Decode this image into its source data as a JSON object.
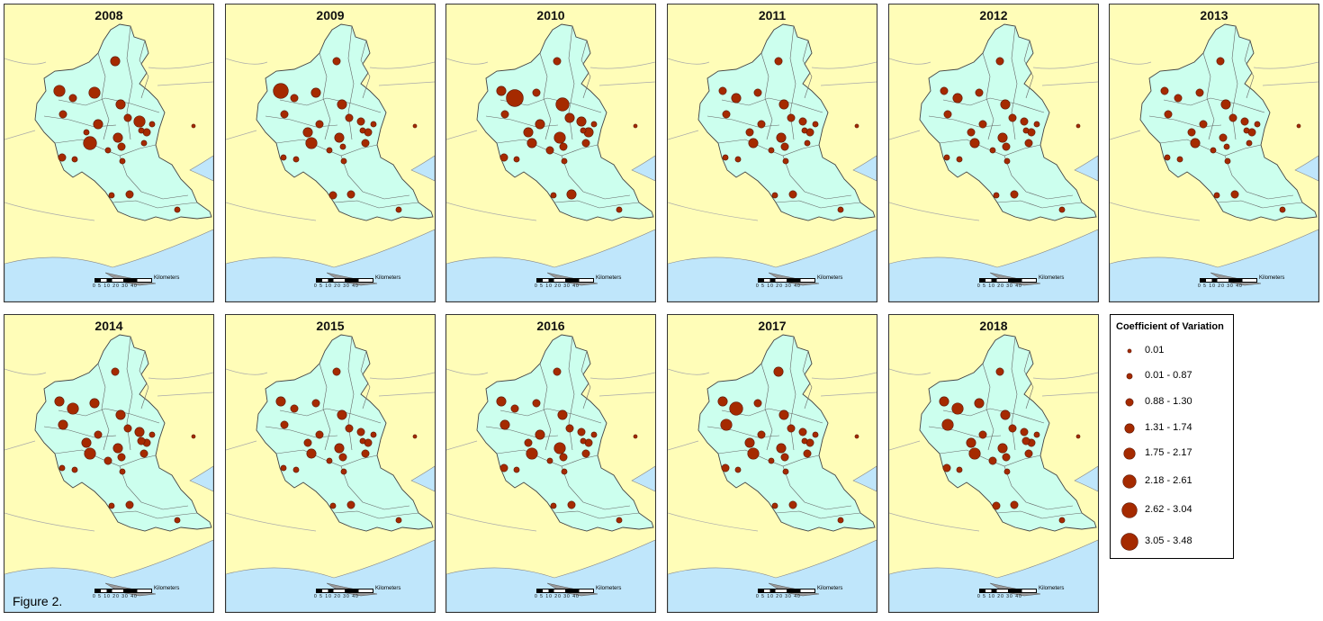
{
  "maps": [
    {
      "year": "2008",
      "sizes": [
        5,
        3,
        4,
        5,
        4,
        3,
        4,
        4,
        3,
        5,
        3,
        2,
        2,
        2,
        2,
        6,
        3,
        2,
        3,
        2,
        3,
        2,
        2,
        1,
        2
      ]
    },
    {
      "year": "2009",
      "sizes": [
        7,
        3,
        3,
        4,
        4,
        3,
        3,
        4,
        3,
        3,
        3,
        2,
        3,
        4,
        2,
        5,
        2,
        2,
        2,
        2,
        3,
        3,
        2,
        1,
        2
      ]
    },
    {
      "year": "2010",
      "sizes": [
        4,
        8,
        3,
        3,
        6,
        3,
        4,
        5,
        4,
        4,
        4,
        2,
        3,
        4,
        3,
        4,
        3,
        2,
        3,
        2,
        4,
        2,
        2,
        1,
        2
      ]
    },
    {
      "year": "2011",
      "sizes": [
        3,
        4,
        3,
        3,
        4,
        3,
        3,
        4,
        3,
        3,
        3,
        2,
        2,
        3,
        2,
        4,
        2,
        2,
        3,
        2,
        3,
        2,
        2,
        1,
        2
      ]
    },
    {
      "year": "2012",
      "sizes": [
        3,
        4,
        3,
        3,
        4,
        3,
        3,
        4,
        3,
        3,
        3,
        2,
        3,
        3,
        2,
        4,
        2,
        2,
        3,
        2,
        3,
        2,
        2,
        1,
        2
      ]
    },
    {
      "year": "2013",
      "sizes": [
        3,
        3,
        3,
        3,
        4,
        3,
        3,
        3,
        3,
        3,
        3,
        2,
        2,
        3,
        2,
        4,
        2,
        2,
        2,
        2,
        3,
        2,
        2,
        1,
        2
      ]
    },
    {
      "year": "2014",
      "sizes": [
        4,
        5,
        3,
        4,
        4,
        4,
        3,
        4,
        3,
        4,
        3,
        2,
        3,
        4,
        3,
        5,
        2,
        2,
        3,
        2,
        3,
        2,
        2,
        1,
        3
      ]
    },
    {
      "year": "2015",
      "sizes": [
        4,
        3,
        3,
        3,
        4,
        3,
        3,
        4,
        3,
        3,
        3,
        2,
        3,
        3,
        2,
        4,
        2,
        2,
        3,
        2,
        3,
        2,
        2,
        1,
        2
      ]
    },
    {
      "year": "2016",
      "sizes": [
        4,
        3,
        3,
        3,
        4,
        4,
        4,
        5,
        3,
        3,
        3,
        2,
        3,
        3,
        2,
        5,
        3,
        2,
        3,
        2,
        3,
        2,
        2,
        1,
        2
      ]
    },
    {
      "year": "2017",
      "sizes": [
        4,
        6,
        4,
        3,
        4,
        5,
        3,
        4,
        3,
        3,
        3,
        2,
        3,
        4,
        2,
        5,
        3,
        2,
        3,
        2,
        3,
        2,
        2,
        1,
        2
      ]
    },
    {
      "year": "2018",
      "sizes": [
        4,
        5,
        3,
        4,
        4,
        5,
        3,
        4,
        3,
        3,
        3,
        2,
        3,
        4,
        3,
        5,
        3,
        2,
        3,
        2,
        3,
        3,
        2,
        1,
        3
      ]
    }
  ],
  "scale_bar": {
    "ticks": "0  5 10  20   30   40",
    "unit": "Kilometers"
  },
  "legend": {
    "title": "Coefficient of Variation",
    "items": [
      {
        "label": "0.01",
        "size": 1
      },
      {
        "label": "0.01 - 0.87",
        "size": 2
      },
      {
        "label": "0.88 - 1.30",
        "size": 3
      },
      {
        "label": "1.31 - 1.74",
        "size": 4
      },
      {
        "label": "1.75 - 2.17",
        "size": 5
      },
      {
        "label": "2.18 - 2.61",
        "size": 6
      },
      {
        "label": "2.62 - 3.04",
        "size": 7
      },
      {
        "label": "3.05 - 3.48",
        "size": 8
      }
    ]
  },
  "figure_label": "Figure 2.",
  "colors": {
    "land": "#fffdb8",
    "basin": "#ccffee",
    "sea": "#bfe6fb",
    "symbol": "#a52a00",
    "symbol_stroke": "#5a1400"
  }
}
